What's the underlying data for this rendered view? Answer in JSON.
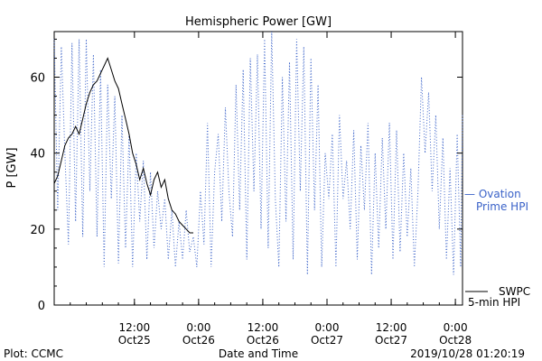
{
  "chart_data": {
    "type": "line",
    "title": "Hemispheric Power [GW]",
    "ylabel": "P [GW]",
    "xlabel": "Date and Time",
    "footer_left": "Plot: CCMC",
    "footer_right": "2019/10/28 01:20:19",
    "xlim": [
      "2019-10-24 21:00",
      "2019-10-28 01:20"
    ],
    "ylim": [
      0,
      72
    ],
    "y_ticks": [
      0,
      20,
      40,
      60
    ],
    "x_ticks": [
      {
        "t": "2019-10-25 12:00",
        "line1": "12:00",
        "line2": "Oct25"
      },
      {
        "t": "2019-10-26 00:00",
        "line1": "0:00",
        "line2": "Oct26"
      },
      {
        "t": "2019-10-26 12:00",
        "line1": "12:00",
        "line2": "Oct26"
      },
      {
        "t": "2019-10-27 00:00",
        "line1": "0:00",
        "line2": "Oct27"
      },
      {
        "t": "2019-10-27 12:00",
        "line1": "12:00",
        "line2": "Oct27"
      },
      {
        "t": "2019-10-28 00:00",
        "line1": "0:00",
        "line2": "Oct28"
      }
    ],
    "series": [
      {
        "name": "SWPC 5-min HPI",
        "legend_line1": "SWPC",
        "legend_line2": "5-min HPI",
        "color": "#000000",
        "style": "solid",
        "points": [
          [
            "2019-10-24 21:00",
            32
          ],
          [
            "2019-10-24 21:40",
            34
          ],
          [
            "2019-10-24 22:20",
            38
          ],
          [
            "2019-10-24 23:00",
            42
          ],
          [
            "2019-10-24 23:40",
            44
          ],
          [
            "2019-10-25 00:20",
            45
          ],
          [
            "2019-10-25 01:00",
            47
          ],
          [
            "2019-10-25 01:40",
            45
          ],
          [
            "2019-10-25 02:20",
            49
          ],
          [
            "2019-10-25 03:00",
            53
          ],
          [
            "2019-10-25 03:40",
            56
          ],
          [
            "2019-10-25 04:20",
            58
          ],
          [
            "2019-10-25 05:00",
            59
          ],
          [
            "2019-10-25 05:40",
            61
          ],
          [
            "2019-10-25 06:20",
            63
          ],
          [
            "2019-10-25 07:00",
            65
          ],
          [
            "2019-10-25 07:40",
            62
          ],
          [
            "2019-10-25 08:20",
            59
          ],
          [
            "2019-10-25 09:00",
            57
          ],
          [
            "2019-10-25 09:40",
            53
          ],
          [
            "2019-10-25 10:20",
            49
          ],
          [
            "2019-10-25 11:00",
            45
          ],
          [
            "2019-10-25 11:40",
            40
          ],
          [
            "2019-10-25 12:20",
            37
          ],
          [
            "2019-10-25 13:00",
            33
          ],
          [
            "2019-10-25 13:40",
            36
          ],
          [
            "2019-10-25 14:20",
            32
          ],
          [
            "2019-10-25 15:00",
            29
          ],
          [
            "2019-10-25 15:40",
            33
          ],
          [
            "2019-10-25 16:20",
            35
          ],
          [
            "2019-10-25 17:00",
            31
          ],
          [
            "2019-10-25 17:40",
            33
          ],
          [
            "2019-10-25 18:20",
            28
          ],
          [
            "2019-10-25 19:00",
            25
          ],
          [
            "2019-10-25 19:40",
            24
          ],
          [
            "2019-10-25 20:20",
            22
          ],
          [
            "2019-10-25 21:00",
            21
          ],
          [
            "2019-10-25 21:40",
            20
          ],
          [
            "2019-10-25 22:20",
            19
          ],
          [
            "2019-10-25 23:00",
            19
          ]
        ]
      },
      {
        "name": "Ovation Prime HPI",
        "legend_line1": "— Ovation",
        "legend_line2": "Prime HPI",
        "color": "#3a62c8",
        "style": "dotted",
        "points": [
          [
            "2019-10-24 21:00",
            70
          ],
          [
            "2019-10-24 21:40",
            25
          ],
          [
            "2019-10-24 22:20",
            68
          ],
          [
            "2019-10-24 23:00",
            40
          ],
          [
            "2019-10-24 23:40",
            16
          ],
          [
            "2019-10-25 00:20",
            69
          ],
          [
            "2019-10-25 01:00",
            22
          ],
          [
            "2019-10-25 01:40",
            70
          ],
          [
            "2019-10-25 02:20",
            18
          ],
          [
            "2019-10-25 03:00",
            70
          ],
          [
            "2019-10-25 03:40",
            30
          ],
          [
            "2019-10-25 04:20",
            66
          ],
          [
            "2019-10-25 05:00",
            18
          ],
          [
            "2019-10-25 05:40",
            62
          ],
          [
            "2019-10-25 06:20",
            10
          ],
          [
            "2019-10-25 07:00",
            58
          ],
          [
            "2019-10-25 07:40",
            28
          ],
          [
            "2019-10-25 08:20",
            55
          ],
          [
            "2019-10-25 09:00",
            11
          ],
          [
            "2019-10-25 09:40",
            50
          ],
          [
            "2019-10-25 10:20",
            15
          ],
          [
            "2019-10-25 11:00",
            45
          ],
          [
            "2019-10-25 11:40",
            10
          ],
          [
            "2019-10-25 12:20",
            40
          ],
          [
            "2019-10-25 13:00",
            22
          ],
          [
            "2019-10-25 13:40",
            38
          ],
          [
            "2019-10-25 14:20",
            12
          ],
          [
            "2019-10-25 15:00",
            35
          ],
          [
            "2019-10-25 15:40",
            15
          ],
          [
            "2019-10-25 16:20",
            30
          ],
          [
            "2019-10-25 17:00",
            20
          ],
          [
            "2019-10-25 17:40",
            28
          ],
          [
            "2019-10-25 18:20",
            12
          ],
          [
            "2019-10-25 19:00",
            25
          ],
          [
            "2019-10-25 19:40",
            10
          ],
          [
            "2019-10-25 20:20",
            22
          ],
          [
            "2019-10-25 21:00",
            12
          ],
          [
            "2019-10-25 21:40",
            25
          ],
          [
            "2019-10-25 22:20",
            14
          ],
          [
            "2019-10-25 23:00",
            18
          ],
          [
            "2019-10-25 23:40",
            10
          ],
          [
            "2019-10-26 00:20",
            30
          ],
          [
            "2019-10-26 01:00",
            16
          ],
          [
            "2019-10-26 01:40",
            48
          ],
          [
            "2019-10-26 02:20",
            10
          ],
          [
            "2019-10-26 03:00",
            35
          ],
          [
            "2019-10-26 03:40",
            45
          ],
          [
            "2019-10-26 04:20",
            22
          ],
          [
            "2019-10-26 05:00",
            52
          ],
          [
            "2019-10-26 05:40",
            30
          ],
          [
            "2019-10-26 06:20",
            18
          ],
          [
            "2019-10-26 07:00",
            58
          ],
          [
            "2019-10-26 07:40",
            25
          ],
          [
            "2019-10-26 08:20",
            62
          ],
          [
            "2019-10-26 09:00",
            12
          ],
          [
            "2019-10-26 09:40",
            65
          ],
          [
            "2019-10-26 10:20",
            30
          ],
          [
            "2019-10-26 11:00",
            66
          ],
          [
            "2019-10-26 11:40",
            20
          ],
          [
            "2019-10-26 12:20",
            70
          ],
          [
            "2019-10-26 13:00",
            15
          ],
          [
            "2019-10-26 13:40",
            72
          ],
          [
            "2019-10-26 14:20",
            28
          ],
          [
            "2019-10-26 15:00",
            10
          ],
          [
            "2019-10-26 15:40",
            60
          ],
          [
            "2019-10-26 16:20",
            22
          ],
          [
            "2019-10-26 17:00",
            64
          ],
          [
            "2019-10-26 17:40",
            12
          ],
          [
            "2019-10-26 18:20",
            70
          ],
          [
            "2019-10-26 19:00",
            30
          ],
          [
            "2019-10-26 19:40",
            68
          ],
          [
            "2019-10-26 20:20",
            8
          ],
          [
            "2019-10-26 21:00",
            65
          ],
          [
            "2019-10-26 21:40",
            25
          ],
          [
            "2019-10-26 22:20",
            58
          ],
          [
            "2019-10-26 23:00",
            10
          ],
          [
            "2019-10-26 23:40",
            40
          ],
          [
            "2019-10-27 00:20",
            28
          ],
          [
            "2019-10-27 01:00",
            45
          ],
          [
            "2019-10-27 01:40",
            10
          ],
          [
            "2019-10-27 02:20",
            50
          ],
          [
            "2019-10-27 03:00",
            28
          ],
          [
            "2019-10-27 03:40",
            38
          ],
          [
            "2019-10-27 04:20",
            20
          ],
          [
            "2019-10-27 05:00",
            46
          ],
          [
            "2019-10-27 05:40",
            12
          ],
          [
            "2019-10-27 06:20",
            42
          ],
          [
            "2019-10-27 07:00",
            25
          ],
          [
            "2019-10-27 07:40",
            48
          ],
          [
            "2019-10-27 08:20",
            8
          ],
          [
            "2019-10-27 09:00",
            40
          ],
          [
            "2019-10-27 09:40",
            15
          ],
          [
            "2019-10-27 10:20",
            44
          ],
          [
            "2019-10-27 11:00",
            20
          ],
          [
            "2019-10-27 11:40",
            48
          ],
          [
            "2019-10-27 12:20",
            12
          ],
          [
            "2019-10-27 13:00",
            46
          ],
          [
            "2019-10-27 13:40",
            14
          ],
          [
            "2019-10-27 14:20",
            40
          ],
          [
            "2019-10-27 15:00",
            18
          ],
          [
            "2019-10-27 15:40",
            36
          ],
          [
            "2019-10-27 16:20",
            10
          ],
          [
            "2019-10-27 17:00",
            30
          ],
          [
            "2019-10-27 17:40",
            60
          ],
          [
            "2019-10-27 18:20",
            40
          ],
          [
            "2019-10-27 19:00",
            56
          ],
          [
            "2019-10-27 19:40",
            30
          ],
          [
            "2019-10-27 20:20",
            50
          ],
          [
            "2019-10-27 21:00",
            20
          ],
          [
            "2019-10-27 21:40",
            44
          ],
          [
            "2019-10-27 22:20",
            12
          ],
          [
            "2019-10-27 23:00",
            36
          ],
          [
            "2019-10-27 23:40",
            8
          ],
          [
            "2019-10-28 00:20",
            45
          ],
          [
            "2019-10-28 01:00",
            10
          ],
          [
            "2019-10-28 01:20",
            50
          ]
        ]
      }
    ]
  }
}
